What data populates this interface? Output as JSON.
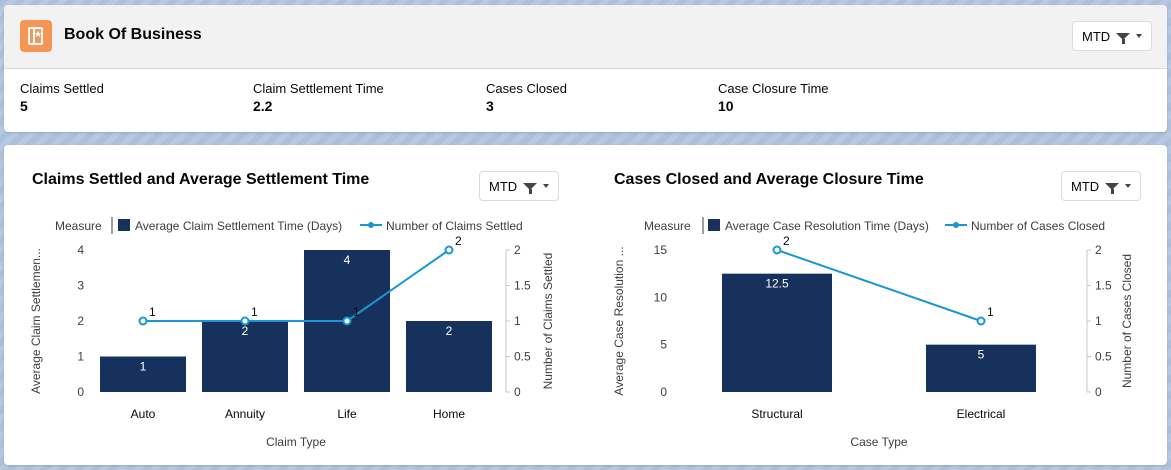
{
  "app": {
    "title": "Book Of Business",
    "filter_label": "MTD"
  },
  "metrics": [
    {
      "label": "Claims Settled",
      "value": "5"
    },
    {
      "label": "Claim Settlement Time",
      "value": "2.2"
    },
    {
      "label": "Cases Closed",
      "value": "3"
    },
    {
      "label": "Case Closure Time",
      "value": "10"
    }
  ],
  "colors": {
    "bar": "#16325c",
    "line": "#1b96d4",
    "accent": "#f49756"
  },
  "charts": [
    {
      "title": "Claims Settled and Average Settlement Time",
      "filter_label": "MTD"
    },
    {
      "title": "Cases Closed and Average Closure Time",
      "filter_label": "MTD"
    }
  ],
  "chart_data": [
    {
      "type": "bar",
      "title": "Claims Settled and Average Settlement Time",
      "legend_title": "Measure",
      "categories": [
        "Auto",
        "Annuity",
        "Life",
        "Home"
      ],
      "series": [
        {
          "name": "Average Claim Settlement Time (Days)",
          "type": "bar",
          "values": [
            1,
            2,
            4,
            2
          ],
          "axis": "left"
        },
        {
          "name": "Number of Claims Settled",
          "type": "line",
          "values": [
            1,
            1,
            1,
            2
          ],
          "axis": "right"
        }
      ],
      "xlabel": "Claim Type",
      "ylabel": "Average Claim Settlemen...",
      "y2label": "Number of Claims Settled",
      "ylim": [
        0,
        4
      ],
      "yticks": [
        "0",
        "1",
        "2",
        "3",
        "4"
      ],
      "y2lim": [
        0,
        2
      ],
      "y2ticks": [
        "0",
        "0.5",
        "1",
        "1.5",
        "2"
      ],
      "legend_position": "top"
    },
    {
      "type": "bar",
      "title": "Cases Closed and Average Closure Time",
      "legend_title": "Measure",
      "categories": [
        "Structural",
        "Electrical"
      ],
      "series": [
        {
          "name": "Average Case Resolution Time (Days)",
          "type": "bar",
          "values": [
            12.5,
            5
          ],
          "axis": "left"
        },
        {
          "name": "Number of Cases Closed",
          "type": "line",
          "values": [
            2,
            1
          ],
          "axis": "right"
        }
      ],
      "xlabel": "Case Type",
      "ylabel": "Average Case Resolution ...",
      "y2label": "Number of Cases Closed",
      "ylim": [
        0,
        15
      ],
      "yticks": [
        "0",
        "5",
        "10",
        "15"
      ],
      "y2lim": [
        0,
        2
      ],
      "y2ticks": [
        "0",
        "0.5",
        "1",
        "1.5",
        "2"
      ],
      "legend_position": "top"
    }
  ]
}
